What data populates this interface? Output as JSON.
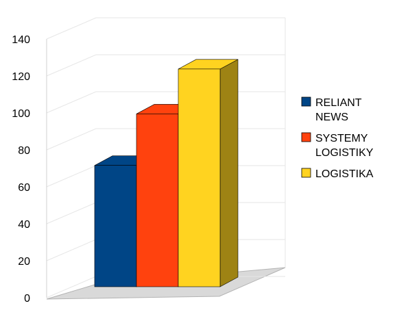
{
  "chart_data": {
    "type": "bar",
    "title": "",
    "xlabel": "",
    "ylabel": "",
    "ylim": [
      0,
      140
    ],
    "yticks": [
      0,
      20,
      40,
      60,
      80,
      100,
      120,
      140
    ],
    "grid": true,
    "three_d": true,
    "legend_position": "right",
    "series": [
      {
        "name": "RELIANT NEWS",
        "value": 73,
        "color": "#004586",
        "legend_lines": [
          "RELIANT",
          "NEWS"
        ]
      },
      {
        "name": "SYSTEMY LOGISTIKY",
        "value": 104,
        "color": "#FF420E",
        "legend_lines": [
          "SYSTEMY",
          "LOGISTIKY"
        ]
      },
      {
        "name": "LOGISTIKA",
        "value": 131,
        "color": "#FFD320",
        "legend_lines": [
          "LOGISTIKA"
        ]
      }
    ]
  }
}
